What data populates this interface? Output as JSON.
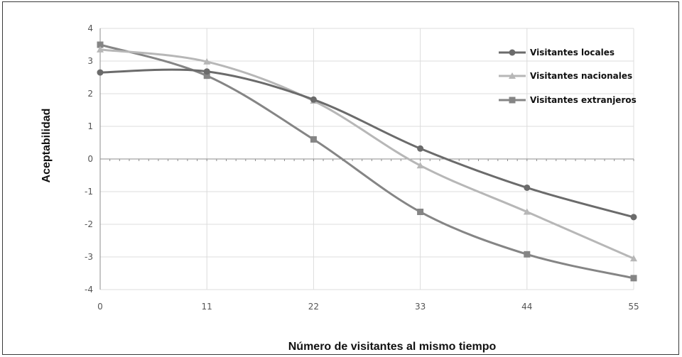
{
  "chart_data": {
    "type": "line",
    "title": "",
    "xlabel": "Número de visitantes al mismo tiempo",
    "ylabel": "Aceptabilidad",
    "x": [
      0,
      11,
      22,
      33,
      44,
      55
    ],
    "xlim": [
      0,
      55
    ],
    "ylim": [
      -4,
      4
    ],
    "x_ticks": [
      "0",
      "11",
      "22",
      "33",
      "44",
      "55"
    ],
    "y_ticks": [
      "4",
      "3",
      "2",
      "1",
      "0",
      "-1",
      "-2",
      "-3",
      "-4"
    ],
    "grid": true,
    "legend_position": "top-right",
    "series": [
      {
        "name": "Visitantes locales",
        "values": [
          2.65,
          2.68,
          1.82,
          0.32,
          -0.88,
          -1.78
        ],
        "color": "#6b6b6b",
        "marker": "circle"
      },
      {
        "name": "Visitantes nacionales",
        "values": [
          3.35,
          2.98,
          1.78,
          -0.2,
          -1.62,
          -3.05
        ],
        "color": "#b7b7b7",
        "marker": "triangle"
      },
      {
        "name": "Visitantes extranjeros",
        "values": [
          3.5,
          2.55,
          0.6,
          -1.62,
          -2.92,
          -3.65
        ],
        "color": "#858585",
        "marker": "square"
      }
    ]
  }
}
